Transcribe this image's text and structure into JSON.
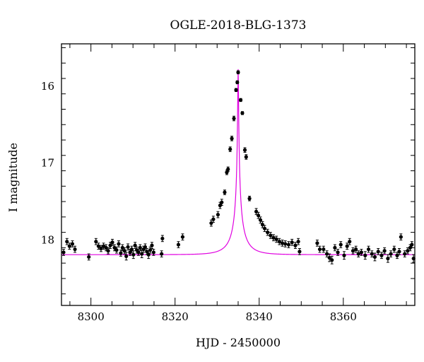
{
  "chart_data": {
    "type": "scatter",
    "title": "OGLE-2018-BLG-1373",
    "xlabel": "HJD - 2450000",
    "ylabel": "I magnitude",
    "xlim": [
      8293,
      8377
    ],
    "ylim": [
      18.85,
      15.45
    ],
    "y_inverted": true,
    "x_ticks": [
      8300,
      8320,
      8340,
      8360
    ],
    "y_ticks": [
      16,
      17,
      18
    ],
    "grid": false,
    "point_color": "#000000",
    "model_color": "#e000e0",
    "model": {
      "peak_time": 8335.0,
      "peak_mag": 15.78,
      "baseline_mag": 18.19,
      "tE": 4.2,
      "u0": 0.02
    },
    "series": [
      {
        "style": "points-with-errorbars",
        "points": [
          [
            8293.5,
            18.16,
            0.04
          ],
          [
            8294.3,
            18.02,
            0.04
          ],
          [
            8294.9,
            18.08,
            0.04
          ],
          [
            8295.6,
            18.05,
            0.04
          ],
          [
            8296.2,
            18.12,
            0.04
          ],
          [
            8299.5,
            18.22,
            0.04
          ],
          [
            8301.2,
            18.02,
            0.04
          ],
          [
            8301.8,
            18.08,
            0.04
          ],
          [
            8302.4,
            18.11,
            0.04
          ],
          [
            8303.0,
            18.08,
            0.04
          ],
          [
            8303.6,
            18.1,
            0.04
          ],
          [
            8304.1,
            18.14,
            0.04
          ],
          [
            8304.6,
            18.07,
            0.04
          ],
          [
            8305.1,
            18.03,
            0.04
          ],
          [
            8305.6,
            18.1,
            0.04
          ],
          [
            8306.1,
            18.13,
            0.04
          ],
          [
            8306.6,
            18.05,
            0.04
          ],
          [
            8307.1,
            18.17,
            0.04
          ],
          [
            8307.5,
            18.1,
            0.04
          ],
          [
            8308.0,
            18.14,
            0.04
          ],
          [
            8308.4,
            18.21,
            0.05
          ],
          [
            8308.8,
            18.09,
            0.04
          ],
          [
            8309.3,
            18.16,
            0.04
          ],
          [
            8309.7,
            18.12,
            0.04
          ],
          [
            8310.1,
            18.19,
            0.05
          ],
          [
            8310.5,
            18.07,
            0.04
          ],
          [
            8310.9,
            18.13,
            0.04
          ],
          [
            8311.3,
            18.16,
            0.04
          ],
          [
            8311.7,
            18.1,
            0.04
          ],
          [
            8312.1,
            18.18,
            0.05
          ],
          [
            8312.5,
            18.12,
            0.04
          ],
          [
            8312.9,
            18.09,
            0.04
          ],
          [
            8313.3,
            18.15,
            0.04
          ],
          [
            8313.7,
            18.19,
            0.05
          ],
          [
            8314.1,
            18.13,
            0.04
          ],
          [
            8314.5,
            18.07,
            0.04
          ],
          [
            8314.9,
            18.16,
            0.04
          ],
          [
            8316.8,
            18.18,
            0.04
          ],
          [
            8317.0,
            17.98,
            0.04
          ],
          [
            8320.8,
            18.06,
            0.04
          ],
          [
            8321.8,
            17.96,
            0.04
          ],
          [
            8328.6,
            17.78,
            0.04
          ],
          [
            8329.1,
            17.73,
            0.04
          ],
          [
            8330.2,
            17.67,
            0.04
          ],
          [
            8330.7,
            17.55,
            0.04
          ],
          [
            8331.1,
            17.51,
            0.04
          ],
          [
            8331.8,
            17.38,
            0.03
          ],
          [
            8332.3,
            17.12,
            0.03
          ],
          [
            8332.6,
            17.08,
            0.03
          ],
          [
            8333.1,
            16.82,
            0.03
          ],
          [
            8333.5,
            16.68,
            0.03
          ],
          [
            8334.0,
            16.42,
            0.03
          ],
          [
            8334.5,
            16.05,
            0.02
          ],
          [
            8334.8,
            15.95,
            0.02
          ],
          [
            8335.0,
            15.82,
            0.02
          ],
          [
            8335.6,
            16.18,
            0.02
          ],
          [
            8336.0,
            16.35,
            0.02
          ],
          [
            8336.6,
            16.83,
            0.03
          ],
          [
            8336.9,
            16.92,
            0.03
          ],
          [
            8337.7,
            17.46,
            0.03
          ],
          [
            8339.3,
            17.63,
            0.04
          ],
          [
            8339.8,
            17.68,
            0.04
          ],
          [
            8340.3,
            17.74,
            0.04
          ],
          [
            8340.8,
            17.8,
            0.04
          ],
          [
            8341.3,
            17.85,
            0.04
          ],
          [
            8342.0,
            17.9,
            0.04
          ],
          [
            8342.7,
            17.94,
            0.04
          ],
          [
            8343.4,
            17.97,
            0.04
          ],
          [
            8344.1,
            17.99,
            0.04
          ],
          [
            8344.8,
            18.02,
            0.04
          ],
          [
            8345.5,
            18.04,
            0.04
          ],
          [
            8346.2,
            18.05,
            0.04
          ],
          [
            8347.0,
            18.06,
            0.04
          ],
          [
            8347.8,
            18.03,
            0.04
          ],
          [
            8348.6,
            18.07,
            0.04
          ],
          [
            8349.3,
            18.02,
            0.04
          ],
          [
            8349.6,
            18.15,
            0.04
          ],
          [
            8353.8,
            18.04,
            0.04
          ],
          [
            8354.4,
            18.12,
            0.04
          ],
          [
            8355.3,
            18.12,
            0.04
          ],
          [
            8356.1,
            18.18,
            0.04
          ],
          [
            8356.7,
            18.23,
            0.05
          ],
          [
            8357.3,
            18.26,
            0.05
          ],
          [
            8358.0,
            18.1,
            0.04
          ],
          [
            8358.7,
            18.16,
            0.04
          ],
          [
            8359.4,
            18.06,
            0.04
          ],
          [
            8360.2,
            18.2,
            0.05
          ],
          [
            8360.9,
            18.08,
            0.04
          ],
          [
            8361.5,
            18.02,
            0.04
          ],
          [
            8362.3,
            18.14,
            0.04
          ],
          [
            8363.0,
            18.12,
            0.04
          ],
          [
            8363.6,
            18.18,
            0.04
          ],
          [
            8364.3,
            18.16,
            0.04
          ],
          [
            8365.2,
            18.2,
            0.05
          ],
          [
            8366.0,
            18.12,
            0.04
          ],
          [
            8366.8,
            18.18,
            0.04
          ],
          [
            8367.5,
            18.22,
            0.05
          ],
          [
            8368.3,
            18.15,
            0.04
          ],
          [
            8369.1,
            18.2,
            0.04
          ],
          [
            8369.8,
            18.14,
            0.04
          ],
          [
            8370.6,
            18.24,
            0.05
          ],
          [
            8371.3,
            18.18,
            0.04
          ],
          [
            8372.1,
            18.12,
            0.04
          ],
          [
            8372.8,
            18.2,
            0.04
          ],
          [
            8373.3,
            18.15,
            0.04
          ],
          [
            8373.7,
            17.96,
            0.04
          ],
          [
            8374.6,
            18.18,
            0.04
          ],
          [
            8375.3,
            18.14,
            0.04
          ],
          [
            8375.9,
            18.1,
            0.04
          ],
          [
            8376.3,
            18.06,
            0.04
          ],
          [
            8376.7,
            18.24,
            0.05
          ]
        ]
      }
    ]
  }
}
